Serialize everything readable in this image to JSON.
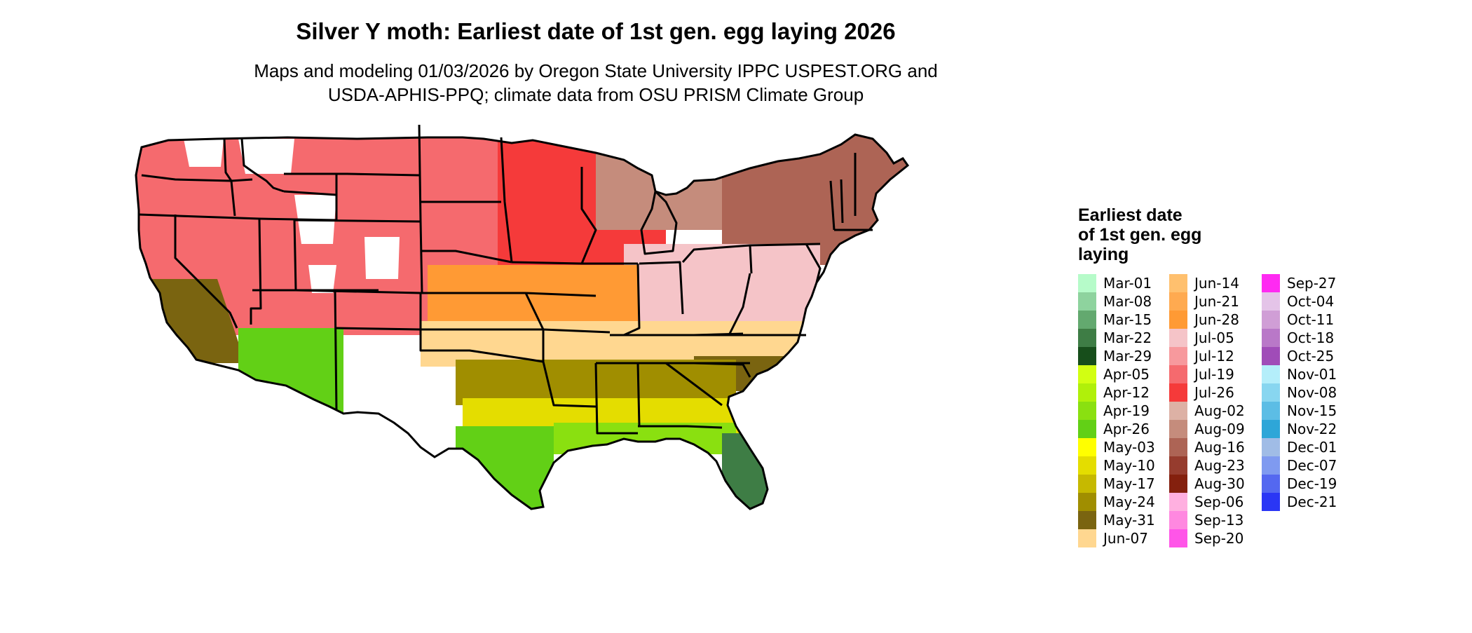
{
  "title": "Silver Y moth: Earliest date of 1st gen. egg laying 2026",
  "subtitle_line1": "Maps and modeling 01/03/2026 by Oregon State University IPPC USPEST.ORG and",
  "subtitle_line2": "USDA-APHIS-PPQ; climate data from OSU PRISM Climate Group",
  "legend": {
    "title_line1": "Earliest date",
    "title_line2": "of 1st gen. egg",
    "title_line3": "laying",
    "items": [
      {
        "label": "Mar-01",
        "color": "#b6fbc9"
      },
      {
        "label": "Mar-08",
        "color": "#8ed39e"
      },
      {
        "label": "Mar-15",
        "color": "#63a96f"
      },
      {
        "label": "Mar-22",
        "color": "#3e7d45"
      },
      {
        "label": "Mar-29",
        "color": "#174e1b"
      },
      {
        "label": "Apr-05",
        "color": "#d2ff12"
      },
      {
        "label": "Apr-12",
        "color": "#b0f00a"
      },
      {
        "label": "Apr-19",
        "color": "#8ae010"
      },
      {
        "label": "Apr-26",
        "color": "#62d016"
      },
      {
        "label": "May-03",
        "color": "#ffff00"
      },
      {
        "label": "May-10",
        "color": "#e4dd00"
      },
      {
        "label": "May-17",
        "color": "#c6b900"
      },
      {
        "label": "May-24",
        "color": "#a08e00"
      },
      {
        "label": "May-31",
        "color": "#7a6410"
      },
      {
        "label": "Jun-07",
        "color": "#ffd790"
      },
      {
        "label": "Jun-14",
        "color": "#ffc06e"
      },
      {
        "label": "Jun-21",
        "color": "#ffaa50"
      },
      {
        "label": "Jun-28",
        "color": "#ff9a34"
      },
      {
        "label": "Jul-05",
        "color": "#f5c4c8"
      },
      {
        "label": "Jul-12",
        "color": "#f7999d"
      },
      {
        "label": "Jul-19",
        "color": "#f56a6e"
      },
      {
        "label": "Jul-26",
        "color": "#f53a3a"
      },
      {
        "label": "Aug-02",
        "color": "#ddb1a5"
      },
      {
        "label": "Aug-09",
        "color": "#c58c7c"
      },
      {
        "label": "Aug-16",
        "color": "#ad6455"
      },
      {
        "label": "Aug-23",
        "color": "#963c2e"
      },
      {
        "label": "Aug-30",
        "color": "#84200e"
      },
      {
        "label": "Sep-06",
        "color": "#ffb0e0"
      },
      {
        "label": "Sep-13",
        "color": "#ff88e0"
      },
      {
        "label": "Sep-20",
        "color": "#ff55e8"
      },
      {
        "label": "Sep-27",
        "color": "#ff2af2"
      },
      {
        "label": "Oct-04",
        "color": "#e4c4e8"
      },
      {
        "label": "Oct-11",
        "color": "#d09ed6"
      },
      {
        "label": "Oct-18",
        "color": "#b978c8"
      },
      {
        "label": "Oct-25",
        "color": "#a04cb8"
      },
      {
        "label": "Nov-01",
        "color": "#b4eefa"
      },
      {
        "label": "Nov-08",
        "color": "#88d6f0"
      },
      {
        "label": "Nov-15",
        "color": "#5cbde5"
      },
      {
        "label": "Nov-22",
        "color": "#2ea6d8"
      },
      {
        "label": "Dec-01",
        "color": "#a0bce6"
      },
      {
        "label": "Dec-07",
        "color": "#7f9af0"
      },
      {
        "label": "Dec-19",
        "color": "#5468f0"
      },
      {
        "label": "Dec-21",
        "color": "#2a36f5"
      }
    ]
  },
  "map": {
    "region": "conterminous United States",
    "state_outline_color": "#000000",
    "no_data_color": "#ffffff",
    "zones": [
      {
        "name": "south-florida",
        "legend_label": "Mar-22"
      },
      {
        "name": "gulf-coast",
        "legend_label": "Apr-19"
      },
      {
        "name": "south-texas",
        "legend_label": "Apr-26"
      },
      {
        "name": "deep-south",
        "legend_label": "May-10"
      },
      {
        "name": "southeast-inland",
        "legend_label": "May-24"
      },
      {
        "name": "carolina-coast",
        "legend_label": "May-31"
      },
      {
        "name": "mid-south",
        "legend_label": "Jun-07"
      },
      {
        "name": "central-plains",
        "legend_label": "Jun-28"
      },
      {
        "name": "ohio-valley",
        "legend_label": "Jul-05"
      },
      {
        "name": "northern-plains",
        "legend_label": "Jul-19"
      },
      {
        "name": "upper-midwest",
        "legend_label": "Jul-26"
      },
      {
        "name": "west-mountains",
        "legend_label": "Jul-19"
      },
      {
        "name": "northeast",
        "legend_label": "Aug-16"
      },
      {
        "name": "upper-great-lakes",
        "legend_label": "Aug-09"
      },
      {
        "name": "california-valley",
        "legend_label": "May-31"
      },
      {
        "name": "desert-southwest",
        "legend_label": "Apr-26"
      },
      {
        "name": "high-peaks",
        "legend_label": ""
      }
    ]
  }
}
